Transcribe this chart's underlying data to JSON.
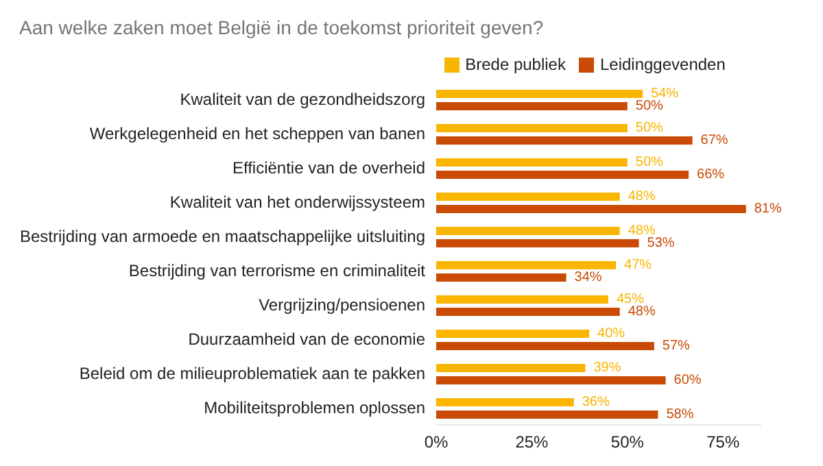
{
  "chart_data": {
    "type": "bar",
    "orientation": "horizontal",
    "title": "Aan welke zaken moet België in de toekomst prioriteit geven?",
    "categories": [
      "Kwaliteit van de gezondheidszorg",
      "Werkgelegenheid en het scheppen van banen",
      "Efficiëntie van de overheid",
      "Kwaliteit van het onderwijssysteem",
      "Bestrijding van armoede en maatschappelijke uitsluiting",
      "Bestrijding van terrorisme en criminaliteit",
      "Vergrijzing/pensioenen",
      "Duurzaamheid van de economie",
      "Beleid om de milieuproblematiek aan te pakken",
      "Mobiliteitsproblemen oplossen"
    ],
    "series": [
      {
        "name": "Brede publiek",
        "color": "#f9b500",
        "values": [
          54,
          50,
          50,
          48,
          48,
          47,
          45,
          40,
          39,
          36
        ],
        "value_labels": [
          "54%",
          "50%",
          "50%",
          "48%",
          "48%",
          "47%",
          "45%",
          "40%",
          "39%",
          "36%"
        ]
      },
      {
        "name": "Leidinggevenden",
        "color": "#c94b05",
        "values": [
          50,
          67,
          66,
          81,
          53,
          34,
          48,
          57,
          60,
          58
        ],
        "value_labels": [
          "50%",
          "67%",
          "66%",
          "81%",
          "53%",
          "34%",
          "48%",
          "57%",
          "60%",
          "58%"
        ]
      }
    ],
    "xlim": [
      0,
      85
    ],
    "xticks": [
      {
        "value": 0,
        "label": "0%"
      },
      {
        "value": 25,
        "label": "25%"
      },
      {
        "value": 50,
        "label": "50%"
      },
      {
        "value": 75,
        "label": "75%"
      }
    ],
    "legend": "top"
  }
}
